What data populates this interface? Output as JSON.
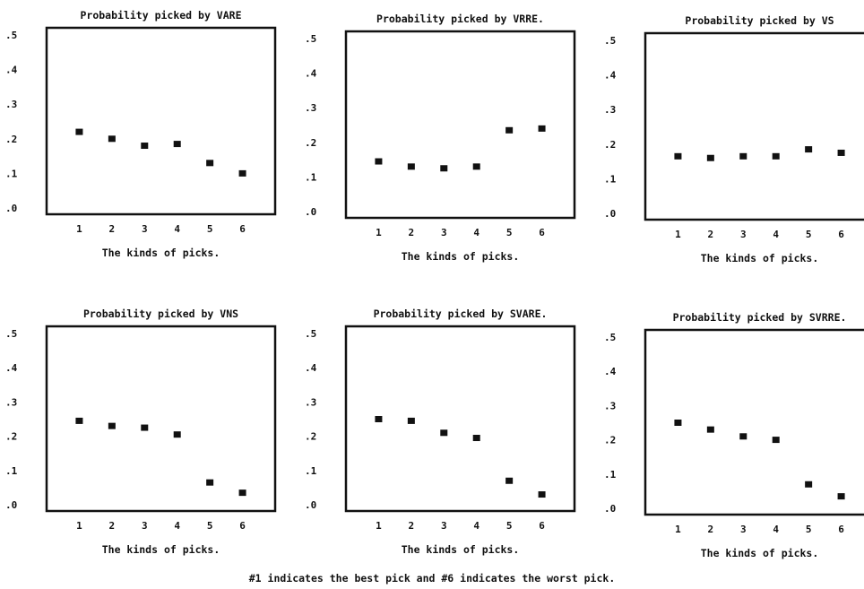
{
  "chart_data": [
    {
      "type": "scatter",
      "title": "Probability picked by VARE",
      "xlabel": "The kinds of picks.",
      "x": [
        1,
        2,
        3,
        4,
        5,
        6
      ],
      "values": [
        0.22,
        0.2,
        0.18,
        0.185,
        0.13,
        0.1
      ],
      "ylim": [
        0,
        0.5
      ],
      "yticks": [
        ".5",
        ".4",
        ".3",
        ".2",
        ".1",
        ".0"
      ],
      "xticks": [
        "1",
        "2",
        "3",
        "4",
        "5",
        "6"
      ],
      "marker": "*",
      "grid": false
    },
    {
      "type": "scatter",
      "title": "Probability picked by VRRE.",
      "xlabel": "The kinds of picks.",
      "x": [
        1,
        2,
        3,
        4,
        5,
        6
      ],
      "values": [
        0.145,
        0.13,
        0.125,
        0.13,
        0.235,
        0.24
      ],
      "ylim": [
        0,
        0.5
      ],
      "yticks": [
        ".5",
        ".4",
        ".3",
        ".2",
        ".1",
        ".0"
      ],
      "xticks": [
        "1",
        "2",
        "3",
        "4",
        "5",
        "6"
      ],
      "marker": "*",
      "grid": false
    },
    {
      "type": "scatter",
      "title": "Probability picked by VS",
      "xlabel": "The kinds of picks.",
      "x": [
        1,
        2,
        3,
        4,
        5,
        6
      ],
      "values": [
        0.165,
        0.16,
        0.165,
        0.165,
        0.185,
        0.175
      ],
      "ylim": [
        0,
        0.5
      ],
      "yticks": [
        ".5",
        ".4",
        ".3",
        ".2",
        ".1",
        ".0"
      ],
      "xticks": [
        "1",
        "2",
        "3",
        "4",
        "5",
        "6"
      ],
      "marker": "*",
      "grid": false
    },
    {
      "type": "scatter",
      "title": "Probability picked by VNS",
      "xlabel": "The kinds of picks.",
      "x": [
        1,
        2,
        3,
        4,
        5,
        6
      ],
      "values": [
        0.245,
        0.23,
        0.225,
        0.205,
        0.065,
        0.035
      ],
      "ylim": [
        0,
        0.5
      ],
      "yticks": [
        ".5",
        ".4",
        ".3",
        ".2",
        ".1",
        ".0"
      ],
      "xticks": [
        "1",
        "2",
        "3",
        "4",
        "5",
        "6"
      ],
      "marker": "*",
      "grid": false
    },
    {
      "type": "scatter",
      "title": "Probability picked by SVARE.",
      "xlabel": "The kinds of picks.",
      "x": [
        1,
        2,
        3,
        4,
        5,
        6
      ],
      "values": [
        0.25,
        0.245,
        0.21,
        0.195,
        0.07,
        0.03
      ],
      "ylim": [
        0,
        0.5
      ],
      "yticks": [
        ".5",
        ".4",
        ".3",
        ".2",
        ".1",
        ".0"
      ],
      "xticks": [
        "1",
        "2",
        "3",
        "4",
        "5",
        "6"
      ],
      "marker": "*",
      "grid": false
    },
    {
      "type": "scatter",
      "title": "Probability picked by SVRRE.",
      "xlabel": "The kinds of picks.",
      "x": [
        1,
        2,
        3,
        4,
        5,
        6
      ],
      "values": [
        0.25,
        0.23,
        0.21,
        0.2,
        0.07,
        0.035
      ],
      "ylim": [
        0,
        0.5
      ],
      "yticks": [
        ".5",
        ".4",
        ".3",
        ".2",
        ".1",
        ".0"
      ],
      "xticks": [
        "1",
        "2",
        "3",
        "4",
        "5",
        "6"
      ],
      "marker": "*",
      "grid": false
    }
  ],
  "caption": "#1 indicates the best pick and #6 indicates the worst pick."
}
